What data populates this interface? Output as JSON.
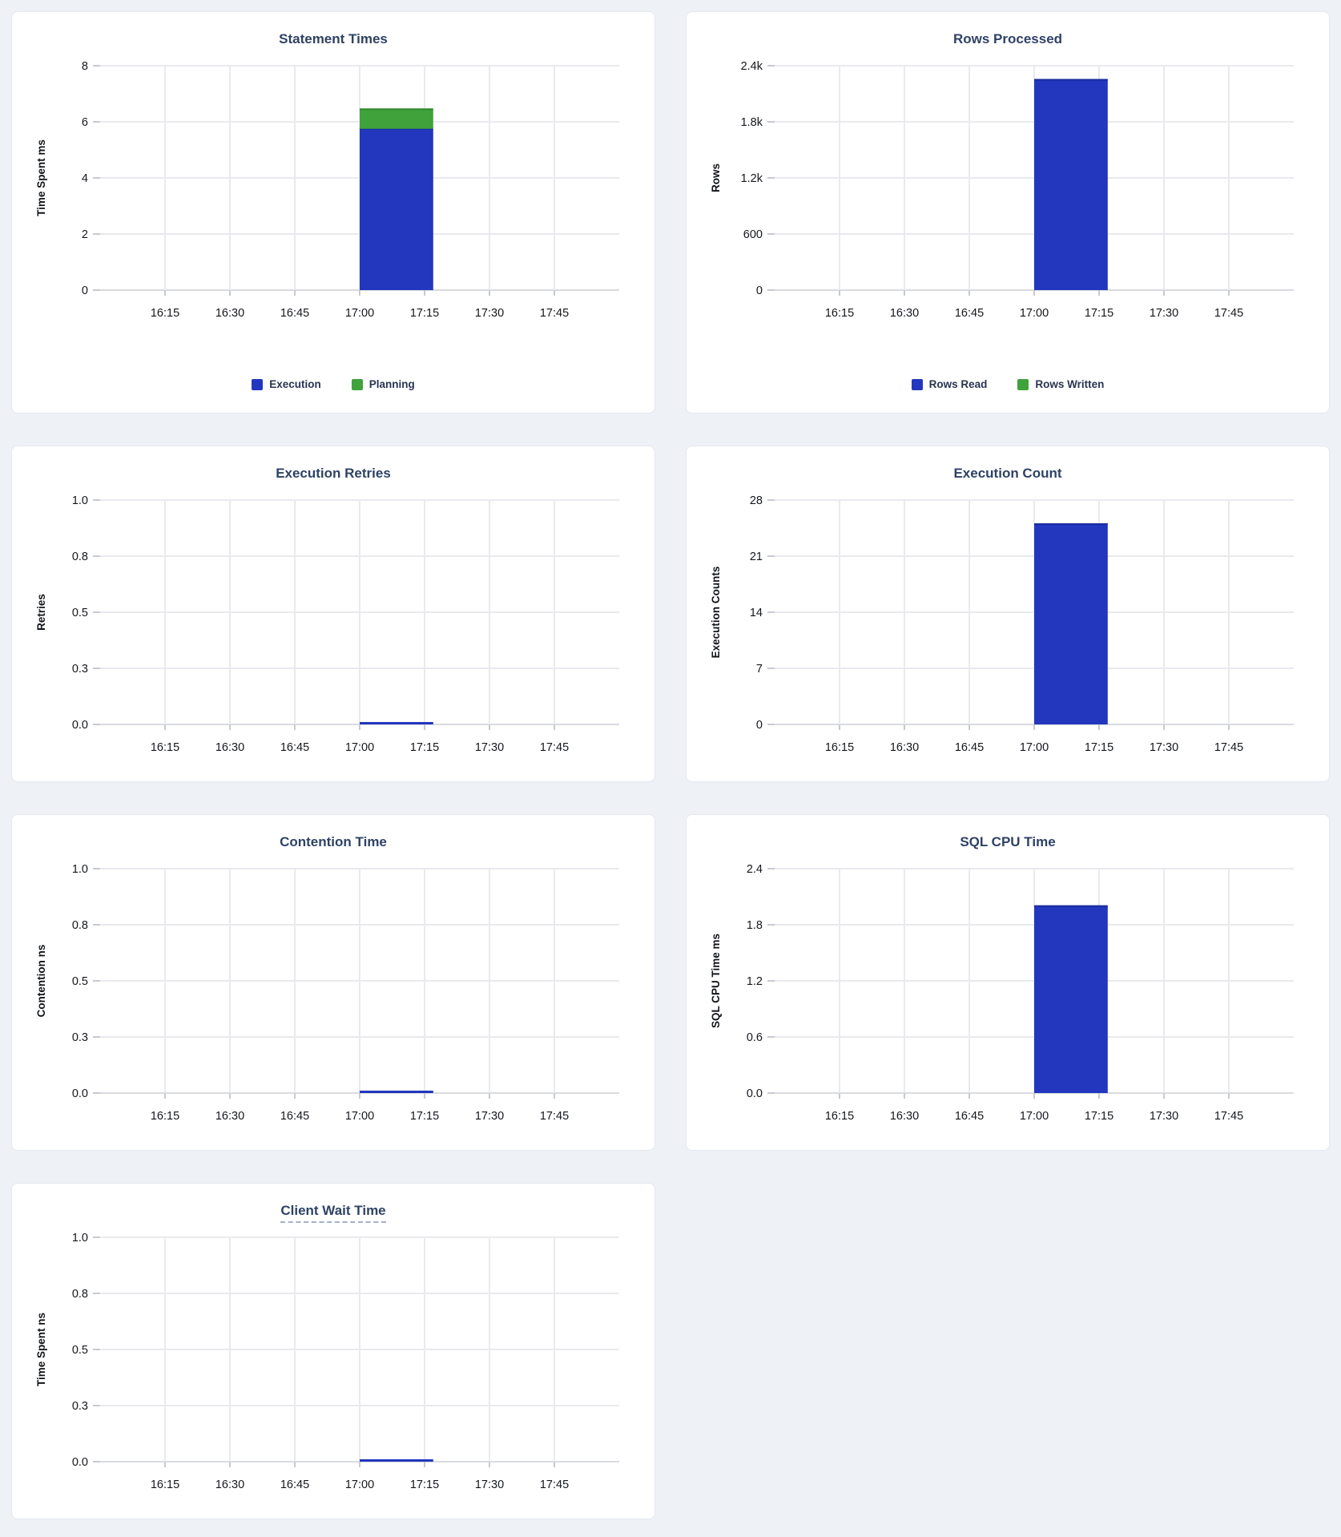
{
  "page": {
    "background_color": "#eef2f7",
    "card_background": "#ffffff"
  },
  "colors": {
    "series_blue": "#2237bd",
    "series_blue_edge": "#1a2b9e",
    "series_green": "#3fa23b",
    "series_green_edge": "#2f8a2c",
    "title_text": "#2e4265",
    "gridline": "#e9eaee",
    "baseline": "#d9dbe0",
    "tick_mark": "#c7cad0"
  },
  "chart_data": [
    {
      "type": "bar",
      "title": "Statement Times",
      "ylabel": "Time Spent ms",
      "ylim": [
        0,
        8
      ],
      "yticks": [
        {
          "v": 0,
          "label": "0"
        },
        {
          "v": 2,
          "label": "2"
        },
        {
          "v": 4,
          "label": "4"
        },
        {
          "v": 6,
          "label": "6"
        },
        {
          "v": 8,
          "label": "8"
        }
      ],
      "x_domain": [
        "16:00",
        "18:00"
      ],
      "xticks": [
        "16:15",
        "16:30",
        "16:45",
        "17:00",
        "17:15",
        "17:30",
        "17:45"
      ],
      "bar_interval": [
        "17:00",
        "17:17"
      ],
      "stacked": true,
      "legend": true,
      "grid": true,
      "legend_position": "bottom",
      "series": [
        {
          "name": "Execution",
          "value": 5.75,
          "color": "#2237bd",
          "edge": "#1a2b9e"
        },
        {
          "name": "Planning",
          "value": 0.7,
          "color": "#3fa23b",
          "edge": "#2f8a2c"
        }
      ]
    },
    {
      "type": "bar",
      "title": "Rows Processed",
      "ylabel": "Rows",
      "ylim": [
        0,
        2400
      ],
      "yticks": [
        {
          "v": 0,
          "label": "0"
        },
        {
          "v": 600,
          "label": "600"
        },
        {
          "v": 1200,
          "label": "1.2k"
        },
        {
          "v": 1800,
          "label": "1.8k"
        },
        {
          "v": 2400,
          "label": "2.4k"
        }
      ],
      "x_domain": [
        "16:00",
        "18:00"
      ],
      "xticks": [
        "16:15",
        "16:30",
        "16:45",
        "17:00",
        "17:15",
        "17:30",
        "17:45"
      ],
      "bar_interval": [
        "17:00",
        "17:17"
      ],
      "stacked": true,
      "legend": true,
      "grid": true,
      "legend_position": "bottom",
      "series": [
        {
          "name": "Rows Read",
          "value": 2250,
          "color": "#2237bd",
          "edge": "#1a2b9e"
        },
        {
          "name": "Rows Written",
          "value": 0,
          "color": "#3fa23b",
          "edge": "#2f8a2c"
        }
      ]
    },
    {
      "type": "line",
      "title": "Execution Retries",
      "ylabel": "Retries",
      "ylim": [
        0,
        1
      ],
      "yticks": [
        {
          "v": 0,
          "label": "0.0"
        },
        {
          "v": 0.25,
          "label": "0.3"
        },
        {
          "v": 0.5,
          "label": "0.5"
        },
        {
          "v": 0.75,
          "label": "0.8"
        },
        {
          "v": 1,
          "label": "1.0"
        }
      ],
      "x_domain": [
        "16:00",
        "18:00"
      ],
      "xticks": [
        "16:15",
        "16:30",
        "16:45",
        "17:00",
        "17:15",
        "17:30",
        "17:45"
      ],
      "bar_interval": [
        "17:00",
        "17:17"
      ],
      "stacked": false,
      "legend": false,
      "grid": true,
      "series": [
        {
          "name": "Retries",
          "value": 0,
          "color": "#2237bd",
          "edge": "#1a2b9e"
        }
      ]
    },
    {
      "type": "bar",
      "title": "Execution Count",
      "ylabel": "Execution Counts",
      "ylim": [
        0,
        28
      ],
      "yticks": [
        {
          "v": 0,
          "label": "0"
        },
        {
          "v": 7,
          "label": "7"
        },
        {
          "v": 14,
          "label": "14"
        },
        {
          "v": 21,
          "label": "21"
        },
        {
          "v": 28,
          "label": "28"
        }
      ],
      "x_domain": [
        "16:00",
        "18:00"
      ],
      "xticks": [
        "16:15",
        "16:30",
        "16:45",
        "17:00",
        "17:15",
        "17:30",
        "17:45"
      ],
      "bar_interval": [
        "17:00",
        "17:17"
      ],
      "stacked": true,
      "legend": false,
      "grid": true,
      "series": [
        {
          "name": "Execution Count",
          "value": 25,
          "color": "#2237bd",
          "edge": "#1a2b9e"
        }
      ]
    },
    {
      "type": "line",
      "title": "Contention Time",
      "ylabel": "Contention ns",
      "ylim": [
        0,
        1
      ],
      "yticks": [
        {
          "v": 0,
          "label": "0.0"
        },
        {
          "v": 0.25,
          "label": "0.3"
        },
        {
          "v": 0.5,
          "label": "0.5"
        },
        {
          "v": 0.75,
          "label": "0.8"
        },
        {
          "v": 1,
          "label": "1.0"
        }
      ],
      "x_domain": [
        "16:00",
        "18:00"
      ],
      "xticks": [
        "16:15",
        "16:30",
        "16:45",
        "17:00",
        "17:15",
        "17:30",
        "17:45"
      ],
      "bar_interval": [
        "17:00",
        "17:17"
      ],
      "stacked": false,
      "legend": false,
      "grid": true,
      "series": [
        {
          "name": "Contention",
          "value": 0,
          "color": "#2237bd",
          "edge": "#1a2b9e"
        }
      ]
    },
    {
      "type": "bar",
      "title": "SQL CPU Time",
      "ylabel": "SQL CPU Time ms",
      "ylim": [
        0,
        2.4
      ],
      "yticks": [
        {
          "v": 0,
          "label": "0.0"
        },
        {
          "v": 0.6,
          "label": "0.6"
        },
        {
          "v": 1.2,
          "label": "1.2"
        },
        {
          "v": 1.8,
          "label": "1.8"
        },
        {
          "v": 2.4,
          "label": "2.4"
        }
      ],
      "x_domain": [
        "16:00",
        "18:00"
      ],
      "xticks": [
        "16:15",
        "16:30",
        "16:45",
        "17:00",
        "17:15",
        "17:30",
        "17:45"
      ],
      "bar_interval": [
        "17:00",
        "17:17"
      ],
      "stacked": true,
      "legend": false,
      "grid": true,
      "series": [
        {
          "name": "SQL CPU Time",
          "value": 2.0,
          "color": "#2237bd",
          "edge": "#1a2b9e"
        }
      ]
    },
    {
      "type": "line",
      "title": "Client Wait Time",
      "ylabel": "Time Spent ns",
      "ylim": [
        0,
        1
      ],
      "yticks": [
        {
          "v": 0,
          "label": "0.0"
        },
        {
          "v": 0.25,
          "label": "0.3"
        },
        {
          "v": 0.5,
          "label": "0.5"
        },
        {
          "v": 0.75,
          "label": "0.8"
        },
        {
          "v": 1,
          "label": "1.0"
        }
      ],
      "x_domain": [
        "16:00",
        "18:00"
      ],
      "xticks": [
        "16:15",
        "16:30",
        "16:45",
        "17:00",
        "17:15",
        "17:30",
        "17:45"
      ],
      "bar_interval": [
        "17:00",
        "17:17"
      ],
      "stacked": false,
      "legend": false,
      "grid": true,
      "title_underlined": true,
      "series": [
        {
          "name": "Client Wait",
          "value": 0,
          "color": "#2237bd",
          "edge": "#1a2b9e"
        }
      ]
    }
  ]
}
